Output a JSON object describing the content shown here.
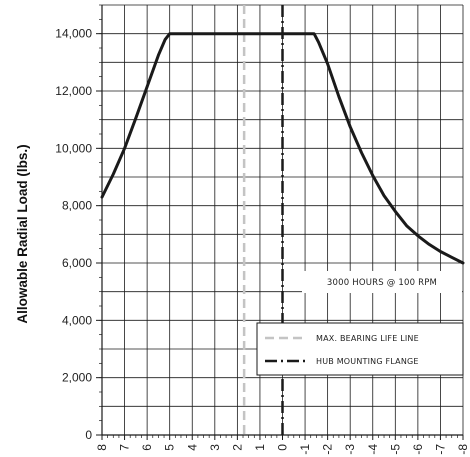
{
  "chart_data": {
    "type": "line",
    "ylabel": "Allowable Radial Load (lbs.)",
    "xlabel": "",
    "xlim": [
      8,
      -8
    ],
    "ylim": [
      0,
      15000
    ],
    "x_ticks": [
      8,
      7,
      6,
      5,
      4,
      3,
      2,
      1,
      0,
      -1,
      -2,
      -3,
      -4,
      -5,
      -6,
      -7,
      -8
    ],
    "x_tick_labels": [
      "8",
      "7",
      "6",
      "5",
      "4",
      "3",
      "2",
      "1",
      "0",
      "-1",
      "-2",
      "-3",
      "-4",
      "-5",
      "-6",
      "-7",
      "-8"
    ],
    "y_ticks": [
      0,
      2000,
      4000,
      6000,
      8000,
      10000,
      12000,
      14000
    ],
    "y_tick_labels": [
      "0",
      "2,000",
      "4,000",
      "6,000",
      "8,000",
      "10,000",
      "12,000",
      "14,000"
    ],
    "grid": true,
    "series": [
      {
        "name": "",
        "color": "#1a1a1a",
        "style": "solid",
        "x": [
          8,
          7.5,
          7,
          6.5,
          6,
          5.5,
          5.2,
          5,
          4.9,
          4,
          3,
          2,
          1,
          0,
          -1,
          -1.4,
          -1.6,
          -2,
          -2.5,
          -3,
          -3.5,
          -4,
          -4.5,
          -5,
          -5.5,
          -6,
          -6.5,
          -7,
          -7.5,
          -8
        ],
        "y": [
          8300,
          9100,
          10000,
          11050,
          12150,
          13250,
          13800,
          14000,
          14000,
          14000,
          14000,
          14000,
          14000,
          14000,
          14000,
          14000,
          13700,
          12950,
          11800,
          10750,
          9850,
          9050,
          8350,
          7800,
          7300,
          6950,
          6650,
          6400,
          6200,
          6000
        ]
      }
    ],
    "reference_lines": [
      {
        "x": 1.7,
        "name": "MAX. BEARING LIFE LINE",
        "color": "#c4c4c4",
        "style": "dashed"
      },
      {
        "x": 0,
        "name": "HUB MOUNTING FLANGE",
        "color": "#1a1a1a",
        "style": "dashdot"
      }
    ],
    "annotation": "3000 HOURS @ 100 RPM",
    "legend_position": "bottom-right"
  }
}
